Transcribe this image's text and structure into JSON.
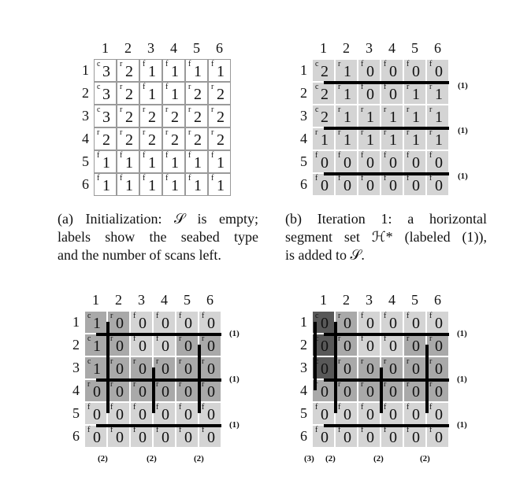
{
  "colors": {
    "light": "#d4d4d4",
    "medium": "#a9a9a9",
    "dark": "#808080",
    "darkest": "#585858",
    "white": "#ffffff"
  },
  "panels": [
    {
      "id": "a",
      "col_numbers": [
        "1",
        "2",
        "3",
        "4",
        "5",
        "6"
      ],
      "row_numbers": [
        "1",
        "2",
        "3",
        "4",
        "5",
        "6"
      ],
      "types": [
        [
          "c",
          "r",
          "f",
          "f",
          "f",
          "f"
        ],
        [
          "c",
          "r",
          "f",
          "f",
          "r",
          "r"
        ],
        [
          "c",
          "r",
          "r",
          "r",
          "r",
          "r"
        ],
        [
          "r",
          "r",
          "r",
          "r",
          "r",
          "r"
        ],
        [
          "f",
          "f",
          "f",
          "f",
          "f",
          "f"
        ],
        [
          "f",
          "f",
          "f",
          "f",
          "f",
          "f"
        ]
      ],
      "values": [
        [
          "3",
          "2",
          "1",
          "1",
          "1",
          "1"
        ],
        [
          "3",
          "2",
          "1",
          "1",
          "2",
          "2"
        ],
        [
          "3",
          "2",
          "2",
          "2",
          "2",
          "2"
        ],
        [
          "2",
          "2",
          "2",
          "2",
          "2",
          "2"
        ],
        [
          "1",
          "1",
          "1",
          "1",
          "1",
          "1"
        ],
        [
          "1",
          "1",
          "1",
          "1",
          "1",
          "1"
        ]
      ],
      "shades": [
        [
          "white",
          "white",
          "white",
          "white",
          "white",
          "white"
        ],
        [
          "white",
          "white",
          "white",
          "white",
          "white",
          "white"
        ],
        [
          "white",
          "white",
          "white",
          "white",
          "white",
          "white"
        ],
        [
          "white",
          "white",
          "white",
          "white",
          "white",
          "white"
        ],
        [
          "white",
          "white",
          "white",
          "white",
          "white",
          "white"
        ],
        [
          "white",
          "white",
          "white",
          "white",
          "white",
          "white"
        ]
      ],
      "row_labels": [
        "",
        "",
        ""
      ],
      "col_labels": [],
      "caption_lines": [
        "(a) Initialization: 𝒮 is empty;",
        "labels show the seabed type",
        "and the number of scans left."
      ]
    },
    {
      "id": "b",
      "col_numbers": [
        "1",
        "2",
        "3",
        "4",
        "5",
        "6"
      ],
      "row_numbers": [
        "1",
        "2",
        "3",
        "4",
        "5",
        "6"
      ],
      "types": [
        [
          "c",
          "r",
          "f",
          "f",
          "f",
          "f"
        ],
        [
          "c",
          "r",
          "f",
          "f",
          "r",
          "r"
        ],
        [
          "c",
          "r",
          "r",
          "r",
          "r",
          "r"
        ],
        [
          "r",
          "r",
          "r",
          "r",
          "r",
          "r"
        ],
        [
          "f",
          "f",
          "f",
          "f",
          "f",
          "f"
        ],
        [
          "f",
          "f",
          "f",
          "f",
          "f",
          "f"
        ]
      ],
      "values": [
        [
          "2",
          "1",
          "0",
          "0",
          "0",
          "0"
        ],
        [
          "2",
          "1",
          "0",
          "0",
          "1",
          "1"
        ],
        [
          "2",
          "1",
          "1",
          "1",
          "1",
          "1"
        ],
        [
          "1",
          "1",
          "1",
          "1",
          "1",
          "1"
        ],
        [
          "0",
          "0",
          "0",
          "0",
          "0",
          "0"
        ],
        [
          "0",
          "0",
          "0",
          "0",
          "0",
          "0"
        ]
      ],
      "shades": [
        [
          "light",
          "light",
          "light",
          "light",
          "light",
          "light"
        ],
        [
          "light",
          "light",
          "light",
          "light",
          "light",
          "light"
        ],
        [
          "light",
          "light",
          "light",
          "light",
          "light",
          "light"
        ],
        [
          "light",
          "light",
          "light",
          "light",
          "light",
          "light"
        ],
        [
          "light",
          "light",
          "light",
          "light",
          "light",
          "light"
        ],
        [
          "light",
          "light",
          "light",
          "light",
          "light",
          "light"
        ]
      ],
      "row_labels": [
        "(1)",
        "(1)",
        "(1)"
      ],
      "col_labels": [],
      "caption_lines": [
        "(b) Iteration 1: a horizontal",
        "segment set ℋ* (labeled (1)),",
        "is added to 𝒮."
      ]
    },
    {
      "id": "c",
      "col_numbers": [
        "1",
        "2",
        "3",
        "4",
        "5",
        "6"
      ],
      "row_numbers": [
        "1",
        "2",
        "3",
        "4",
        "5",
        "6"
      ],
      "types": [
        [
          "c",
          "r",
          "f",
          "f",
          "f",
          "f"
        ],
        [
          "c",
          "r",
          "f",
          "f",
          "r",
          "r"
        ],
        [
          "c",
          "r",
          "r",
          "r",
          "r",
          "r"
        ],
        [
          "r",
          "r",
          "r",
          "r",
          "r",
          "r"
        ],
        [
          "f",
          "f",
          "f",
          "f",
          "f",
          "f"
        ],
        [
          "f",
          "f",
          "f",
          "f",
          "f",
          "f"
        ]
      ],
      "values": [
        [
          "1",
          "0",
          "0",
          "0",
          "0",
          "0"
        ],
        [
          "1",
          "0",
          "0",
          "0",
          "0",
          "0"
        ],
        [
          "1",
          "0",
          "0",
          "0",
          "0",
          "0"
        ],
        [
          "0",
          "0",
          "0",
          "0",
          "0",
          "0"
        ],
        [
          "0",
          "0",
          "0",
          "0",
          "0",
          "0"
        ],
        [
          "0",
          "0",
          "0",
          "0",
          "0",
          "0"
        ]
      ],
      "shades": [
        [
          "medium",
          "medium",
          "light",
          "light",
          "light",
          "light"
        ],
        [
          "medium",
          "medium",
          "light",
          "light",
          "medium",
          "medium"
        ],
        [
          "medium",
          "medium",
          "medium",
          "medium",
          "medium",
          "medium"
        ],
        [
          "medium",
          "medium",
          "medium",
          "medium",
          "medium",
          "medium"
        ],
        [
          "light",
          "light",
          "light",
          "light",
          "light",
          "light"
        ],
        [
          "light",
          "light",
          "light",
          "light",
          "light",
          "light"
        ]
      ],
      "row_labels": [
        "(1)",
        "(1)",
        "(1)"
      ],
      "col_labels": [
        "(2)",
        "(2)",
        "(2)"
      ],
      "caption_lines": []
    },
    {
      "id": "d",
      "col_numbers": [
        "1",
        "2",
        "3",
        "4",
        "5",
        "6"
      ],
      "row_numbers": [
        "1",
        "2",
        "3",
        "4",
        "5",
        "6"
      ],
      "types": [
        [
          "c",
          "r",
          "f",
          "f",
          "f",
          "f"
        ],
        [
          "c",
          "r",
          "f",
          "f",
          "r",
          "r"
        ],
        [
          "c",
          "r",
          "r",
          "r",
          "r",
          "r"
        ],
        [
          "r",
          "r",
          "r",
          "r",
          "r",
          "r"
        ],
        [
          "f",
          "f",
          "f",
          "f",
          "f",
          "f"
        ],
        [
          "f",
          "f",
          "f",
          "f",
          "f",
          "f"
        ]
      ],
      "values": [
        [
          "0",
          "0",
          "0",
          "0",
          "0",
          "0"
        ],
        [
          "0",
          "0",
          "0",
          "0",
          "0",
          "0"
        ],
        [
          "0",
          "0",
          "0",
          "0",
          "0",
          "0"
        ],
        [
          "0",
          "0",
          "0",
          "0",
          "0",
          "0"
        ],
        [
          "0",
          "0",
          "0",
          "0",
          "0",
          "0"
        ],
        [
          "0",
          "0",
          "0",
          "0",
          "0",
          "0"
        ]
      ],
      "shades": [
        [
          "darkest",
          "medium",
          "light",
          "light",
          "light",
          "light"
        ],
        [
          "darkest",
          "medium",
          "light",
          "light",
          "medium",
          "medium"
        ],
        [
          "darkest",
          "medium",
          "medium",
          "medium",
          "medium",
          "medium"
        ],
        [
          "medium",
          "medium",
          "medium",
          "medium",
          "medium",
          "medium"
        ],
        [
          "light",
          "light",
          "light",
          "light",
          "light",
          "light"
        ],
        [
          "light",
          "light",
          "light",
          "light",
          "light",
          "light"
        ]
      ],
      "row_labels": [
        "(1)",
        "(1)",
        "(1)"
      ],
      "col_labels": [
        "(3)",
        "(2)",
        "(2)",
        "(2)"
      ],
      "caption_lines": []
    }
  ]
}
